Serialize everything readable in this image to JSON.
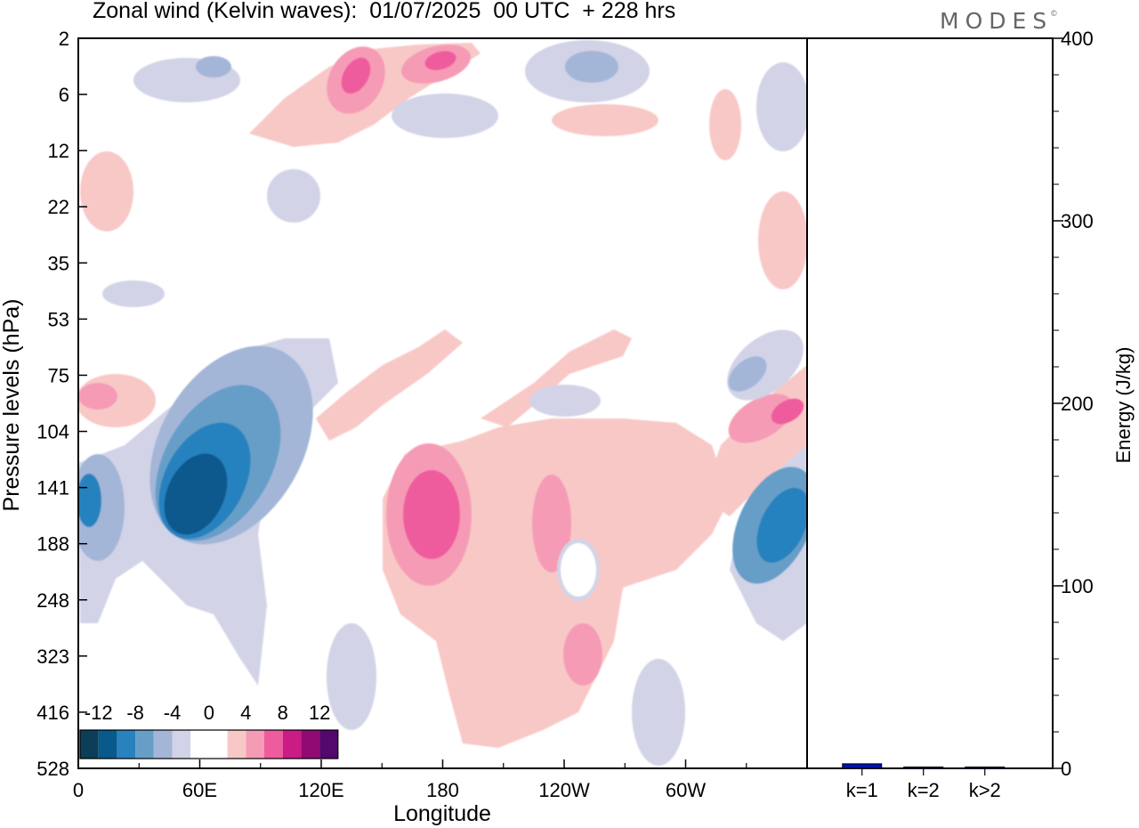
{
  "title": "Zonal wind (Kelvin waves):  01/07/2025  00 UTC  + 228 hrs",
  "brand": "MODES",
  "brand_mark": "©",
  "chart_data": [
    {
      "type": "heatmap",
      "xlabel": "Longitude",
      "ylabel": "Pressure levels (hPa)",
      "x_tick_labels": [
        "0",
        "60E",
        "120E",
        "180",
        "120W",
        "60W"
      ],
      "y_tick_labels": [
        "2",
        "6",
        "12",
        "22",
        "35",
        "53",
        "75",
        "104",
        "141",
        "188",
        "248",
        "323",
        "416",
        "528"
      ],
      "colorbar": {
        "labels": [
          "-12",
          "-8",
          "-4",
          "0",
          "4",
          "8",
          "12"
        ],
        "levels": [
          -14,
          -12,
          -10,
          -8,
          -6,
          -4,
          -2,
          0,
          2,
          4,
          6,
          8,
          10,
          12,
          14
        ],
        "colors": [
          "#0c3e57",
          "#08598c",
          "#2882be",
          "#669ec8",
          "#a3b6d8",
          "#d2d3e7",
          "#ffffff",
          "#ffffff",
          "#f8c8c6",
          "#f59bb6",
          "#ef5c9d",
          "#cb1b84",
          "#8f0b73",
          "#54086b"
        ]
      },
      "features": [
        {
          "name": "negative anomaly 60E-75E",
          "lon": 60,
          "level_index": 8.2,
          "value": -13
        },
        {
          "name": "negative anomaly 0-10E",
          "lon": 3,
          "level_index": 8.3,
          "value": -9
        },
        {
          "name": "negative anomaly east of 60W",
          "lon": 340,
          "level_index": 8.6,
          "value": -10
        },
        {
          "name": "positive anomaly near 180",
          "lon": 173,
          "level_index": 8.5,
          "value": 9
        },
        {
          "name": "positive anomaly near 140E upper",
          "lon": 138,
          "level_index": 0.5,
          "value": 11
        },
        {
          "name": "positive anomaly near 170E upper",
          "lon": 172,
          "level_index": 0.3,
          "value": 10
        },
        {
          "name": "positive anomaly near 20W",
          "lon": 345,
          "level_index": 6.7,
          "value": 8
        },
        {
          "name": "positive anomaly 0-15E",
          "lon": 8,
          "level_index": 6.4,
          "value": 6
        },
        {
          "name": "negative anomaly near 70E",
          "lon": 75,
          "level_index": 6.3,
          "value": -8
        },
        {
          "name": "negative anomaly near 150W upper",
          "lon": 255,
          "level_index": 0.6,
          "value": -7
        }
      ]
    },
    {
      "type": "bar",
      "ylabel": "Energy (J/kg)",
      "ylim": [
        0,
        400
      ],
      "y_tick_labels": [
        "0",
        "100",
        "200",
        "300",
        "400"
      ],
      "categories": [
        "k=1",
        "k=2",
        "k>2"
      ],
      "values": [
        2.5,
        0.3,
        0.5
      ],
      "color": "#0010b0"
    }
  ]
}
